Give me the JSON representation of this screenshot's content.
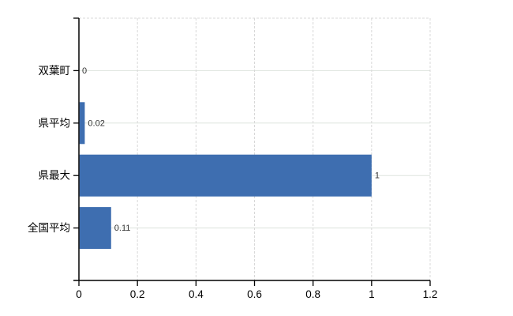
{
  "chart_data": {
    "type": "bar",
    "orientation": "horizontal",
    "title": "",
    "categories": [
      "双葉町",
      "県平均",
      "県最大",
      "全国平均"
    ],
    "values": [
      0,
      0.02,
      1,
      0.11
    ],
    "value_labels": [
      "0",
      "0.02",
      "1",
      "0.11"
    ],
    "xlim": [
      0,
      1.2
    ],
    "xticks": [
      0,
      0.2,
      0.4,
      0.6,
      0.8,
      1,
      1.2
    ],
    "xtick_labels": [
      "0",
      "0.2",
      "0.4",
      "0.6",
      "0.8",
      "1",
      "1.2"
    ],
    "grid": "on",
    "legend": "none",
    "colors": {
      "bar": "#3e6eb0",
      "h_gridline": "#dde3dd",
      "v_gridline": "#d8d8d8",
      "axis": "#000000",
      "tick_label": "#000000",
      "category_label": "#000000",
      "value_label": "#333333",
      "background": "#ffffff"
    }
  }
}
